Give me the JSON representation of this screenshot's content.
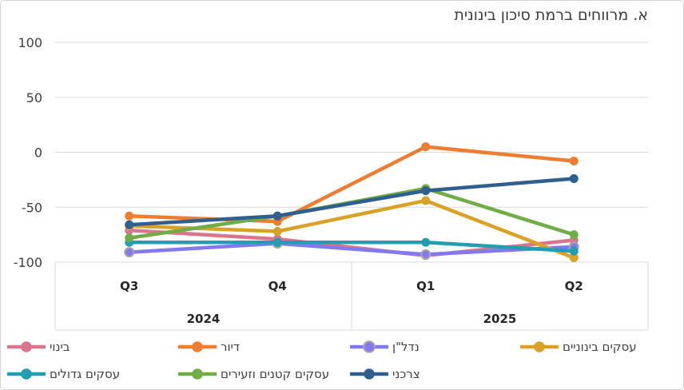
{
  "chart_data": {
    "type": "line",
    "title": "א. מרווחים ברמת סיכון בינונית",
    "categories": [
      "Q3",
      "Q4",
      "Q1",
      "Q2"
    ],
    "year_groups": [
      {
        "label": "2024",
        "from": 0,
        "to": 1
      },
      {
        "label": "2025",
        "from": 2,
        "to": 3
      }
    ],
    "yticks": [
      100,
      50,
      0,
      -50,
      -100
    ],
    "ylim": [
      -100,
      100
    ],
    "grid": "horizontal",
    "legend_position": "bottom",
    "axis_color": "#404040",
    "gridline_color": "#d9d9d9",
    "series": [
      {
        "name": "בינוי",
        "color": "#d9758d",
        "values": [
          -71,
          -79,
          -94,
          -80
        ]
      },
      {
        "name": "דיור",
        "color": "#ed7d31",
        "values": [
          -58,
          -63,
          5,
          -8
        ]
      },
      {
        "name": "נדל\"ן",
        "color": "#8279f0",
        "marker_ring": "#a6a6a6",
        "values": [
          -91,
          -83,
          -93,
          -86
        ]
      },
      {
        "name": "עסקים בינוניים",
        "color": "#d9a226",
        "values": [
          -67,
          -72,
          -44,
          -96
        ]
      },
      {
        "name": "עסקים גדולים",
        "color": "#219fb0",
        "values": [
          -82,
          -82,
          -82,
          -90
        ]
      },
      {
        "name": "עסקים קטנים וזעירים",
        "color": "#70ad47",
        "values": [
          -78,
          -58,
          -33,
          -75
        ]
      },
      {
        "name": "צרכני",
        "color": "#2f5f8f",
        "values": [
          -66,
          -58,
          -35,
          -24
        ]
      }
    ]
  }
}
